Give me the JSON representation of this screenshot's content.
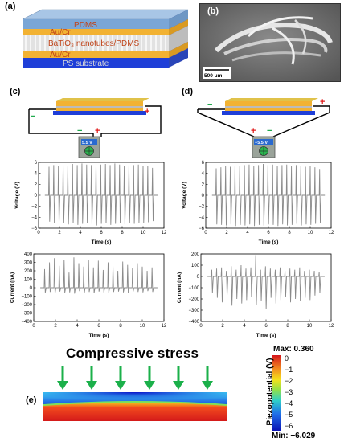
{
  "panels": {
    "a": "(a)",
    "b": "(b)",
    "c": "(c)",
    "d": "(d)",
    "e": "(e)"
  },
  "stack": {
    "layers": [
      "PDMS",
      "Au/Cr",
      "BaTiO₃ nanotubes/PDMS",
      "Au/Cr",
      "PS substrate"
    ],
    "colors": {
      "pdms": "#7aa6d6",
      "electrode": "#f2b233",
      "composite": "#d9d9d9",
      "substrate": "#1f3fd8",
      "text": "#c0441a"
    }
  },
  "sem": {
    "scalebar": "500 μm"
  },
  "device_c": {
    "meter": "5.5 V",
    "minus": "−",
    "plus": "+"
  },
  "device_d": {
    "meter": "−5.5 V",
    "minus": "−",
    "plus": "+"
  },
  "chart_data": [
    {
      "id": "voltage-c",
      "type": "line",
      "xlabel": "Time (s)",
      "ylabel": "Voltage (V)",
      "xlim": [
        0,
        12
      ],
      "ylim": [
        -6,
        6
      ],
      "xticks": [
        0,
        2,
        4,
        6,
        8,
        10,
        12
      ],
      "yticks": [
        -6,
        -4,
        -2,
        0,
        2,
        4,
        6
      ],
      "series": [
        {
          "pulse_times": [
            1.0,
            1.45,
            1.9,
            2.35,
            2.8,
            3.25,
            3.7,
            4.15,
            4.6,
            5.05,
            5.5,
            5.95,
            6.4,
            6.85,
            7.3,
            7.75,
            8.2,
            8.65,
            9.1,
            9.55,
            10.0,
            10.45,
            10.9
          ],
          "peaks": [
            5.2,
            5.5,
            5.4,
            5.6,
            5.3,
            5.7,
            5.5,
            5.8,
            5.6,
            5.5,
            5.9,
            5.6,
            5.7,
            5.5,
            5.8,
            5.6,
            5.4,
            5.7,
            5.5,
            5.6,
            5.3,
            5.4,
            5.0
          ],
          "troughs": [
            -4.8,
            -5.0,
            -5.2,
            -5.0,
            -5.3,
            -5.1,
            -5.4,
            -5.2,
            -5.0,
            -5.3,
            -5.5,
            -5.2,
            -5.1,
            -5.4,
            -5.2,
            -5.0,
            -5.3,
            -5.1,
            -5.2,
            -5.0,
            -5.1,
            -4.9,
            -4.7
          ]
        }
      ]
    },
    {
      "id": "voltage-d",
      "type": "line",
      "xlabel": "Time (s)",
      "ylabel": "Voltage (V)",
      "xlim": [
        0,
        12
      ],
      "ylim": [
        -6,
        6
      ],
      "xticks": [
        0,
        2,
        4,
        6,
        8,
        10,
        12
      ],
      "yticks": [
        -6,
        -4,
        -2,
        0,
        2,
        4,
        6
      ],
      "series": [
        {
          "pulse_times": [
            1.0,
            1.45,
            1.9,
            2.35,
            2.8,
            3.25,
            3.7,
            4.15,
            4.6,
            5.05,
            5.5,
            5.95,
            6.4,
            6.85,
            7.3,
            7.75,
            8.2,
            8.65,
            9.1,
            9.55,
            10.0,
            10.45,
            10.9
          ],
          "peaks": [
            4.9,
            5.1,
            5.3,
            5.2,
            5.4,
            5.3,
            5.5,
            5.6,
            5.4,
            5.5,
            5.7,
            5.5,
            5.6,
            5.4,
            5.5,
            5.6,
            5.3,
            5.5,
            5.4,
            5.2,
            5.3,
            5.1,
            4.8
          ],
          "troughs": [
            -5.3,
            -5.4,
            -5.5,
            -5.3,
            -5.6,
            -5.4,
            -5.5,
            -5.3,
            -5.6,
            -5.4,
            -5.5,
            -5.3,
            -5.4,
            -5.6,
            -5.3,
            -5.5,
            -5.4,
            -5.2,
            -5.5,
            -5.3,
            -5.4,
            -5.2,
            -5.0
          ]
        }
      ]
    },
    {
      "id": "current-c",
      "type": "line",
      "xlabel": "Time (s)",
      "ylabel": "Current (nA)",
      "xlim": [
        0,
        12
      ],
      "ylim": [
        -400,
        400
      ],
      "xticks": [
        0,
        2,
        4,
        6,
        8,
        10,
        12
      ],
      "yticks": [
        -400,
        -300,
        -200,
        -100,
        0,
        100,
        200,
        300,
        400
      ],
      "series": [
        {
          "pulse_times": [
            1.0,
            1.45,
            1.9,
            2.35,
            2.8,
            3.25,
            3.7,
            4.15,
            4.6,
            5.05,
            5.5,
            5.95,
            6.4,
            6.85,
            7.3,
            7.75,
            8.2,
            8.65,
            9.1,
            9.55,
            10.0,
            10.45,
            10.9
          ],
          "peaks": [
            220,
            300,
            350,
            260,
            330,
            180,
            360,
            290,
            250,
            330,
            240,
            320,
            210,
            300,
            260,
            200,
            310,
            270,
            230,
            290,
            250,
            200,
            240
          ],
          "troughs": [
            -60,
            -50,
            -70,
            -45,
            -60,
            -55,
            -70,
            -40,
            -60,
            -50,
            -65,
            -45,
            -55,
            -60,
            -50,
            -45,
            -55,
            -60,
            -45,
            -50,
            -55,
            -40,
            -50
          ]
        }
      ]
    },
    {
      "id": "current-d",
      "type": "line",
      "xlabel": "Time (s)",
      "ylabel": "Current (nA)",
      "xlim": [
        0,
        12
      ],
      "ylim": [
        -400,
        200
      ],
      "xticks": [
        0,
        2,
        4,
        6,
        8,
        10,
        12
      ],
      "yticks": [
        -400,
        -300,
        -200,
        -100,
        0,
        100,
        200
      ],
      "series": [
        {
          "pulse_times": [
            1.0,
            1.45,
            1.9,
            2.35,
            2.8,
            3.25,
            3.7,
            4.15,
            4.6,
            5.05,
            5.5,
            5.95,
            6.4,
            6.85,
            7.3,
            7.75,
            8.2,
            8.65,
            9.1,
            9.55,
            10.0,
            10.45,
            10.9
          ],
          "peaks": [
            60,
            70,
            80,
            50,
            90,
            60,
            100,
            70,
            80,
            190,
            60,
            90,
            70,
            60,
            80,
            50,
            70,
            60,
            80,
            50,
            60,
            50,
            40
          ],
          "troughs": [
            -150,
            -190,
            -230,
            -170,
            -260,
            -200,
            -240,
            -210,
            -180,
            -250,
            -220,
            -290,
            -190,
            -240,
            -210,
            -180,
            -230,
            -200,
            -220,
            -190,
            -210,
            -170,
            -150
          ]
        }
      ]
    }
  ],
  "stress": {
    "title": "Compressive stress",
    "arrow_count": 6,
    "arrow_color": "#1bb04a"
  },
  "colorbar": {
    "label": "Piezopotential (V)",
    "max_label": "Max: 0.360",
    "min_label": "Min: −6.029",
    "ticks": [
      "0",
      "−1",
      "−2",
      "−3",
      "−4",
      "−5",
      "−6"
    ]
  }
}
